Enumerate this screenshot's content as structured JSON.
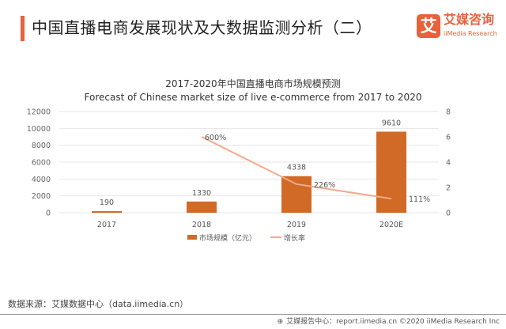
{
  "header": {
    "title": "中国直播电商发展现状及大数据监测分析（二）"
  },
  "logo": {
    "mark": "艾",
    "name_cn": "艾媒咨询",
    "name_en": "iiMedia Research"
  },
  "chart_data": {
    "type": "bar",
    "title": "2017-2020年中国直播电商市场规模预测",
    "subtitle": "Forecast of Chinese market size of live e-commerce from 2017 to 2020",
    "categories": [
      "2017",
      "2018",
      "2019",
      "2020E"
    ],
    "series": [
      {
        "name": "市场规模（亿元）",
        "type": "bar",
        "axis": "left",
        "values": [
          190,
          1330,
          4338,
          9610
        ],
        "labels": [
          "190",
          "1330",
          "4338",
          "9610"
        ],
        "color": "#d06a26"
      },
      {
        "name": "增长率",
        "type": "line",
        "axis": "right",
        "values": [
          null,
          6.0,
          2.26,
          1.11
        ],
        "labels": [
          "",
          "600%",
          "226%",
          "111%"
        ],
        "color": "#f2a98a"
      }
    ],
    "y_left": {
      "range": [
        0,
        12000
      ],
      "ticks": [
        "0",
        "2000",
        "4000",
        "6000",
        "8000",
        "10000",
        "12000"
      ]
    },
    "y_right": {
      "range": [
        0,
        8
      ],
      "ticks": [
        "0",
        "2",
        "4",
        "6",
        "8"
      ]
    },
    "grid": true,
    "legend": "bottom"
  },
  "footer": {
    "source": "数据来源：艾媒数据中心（data.iimedia.cn）",
    "copyright": "艾媒报告中心：report.iimedia.cn  ©2020  iiMedia Research Inc"
  }
}
